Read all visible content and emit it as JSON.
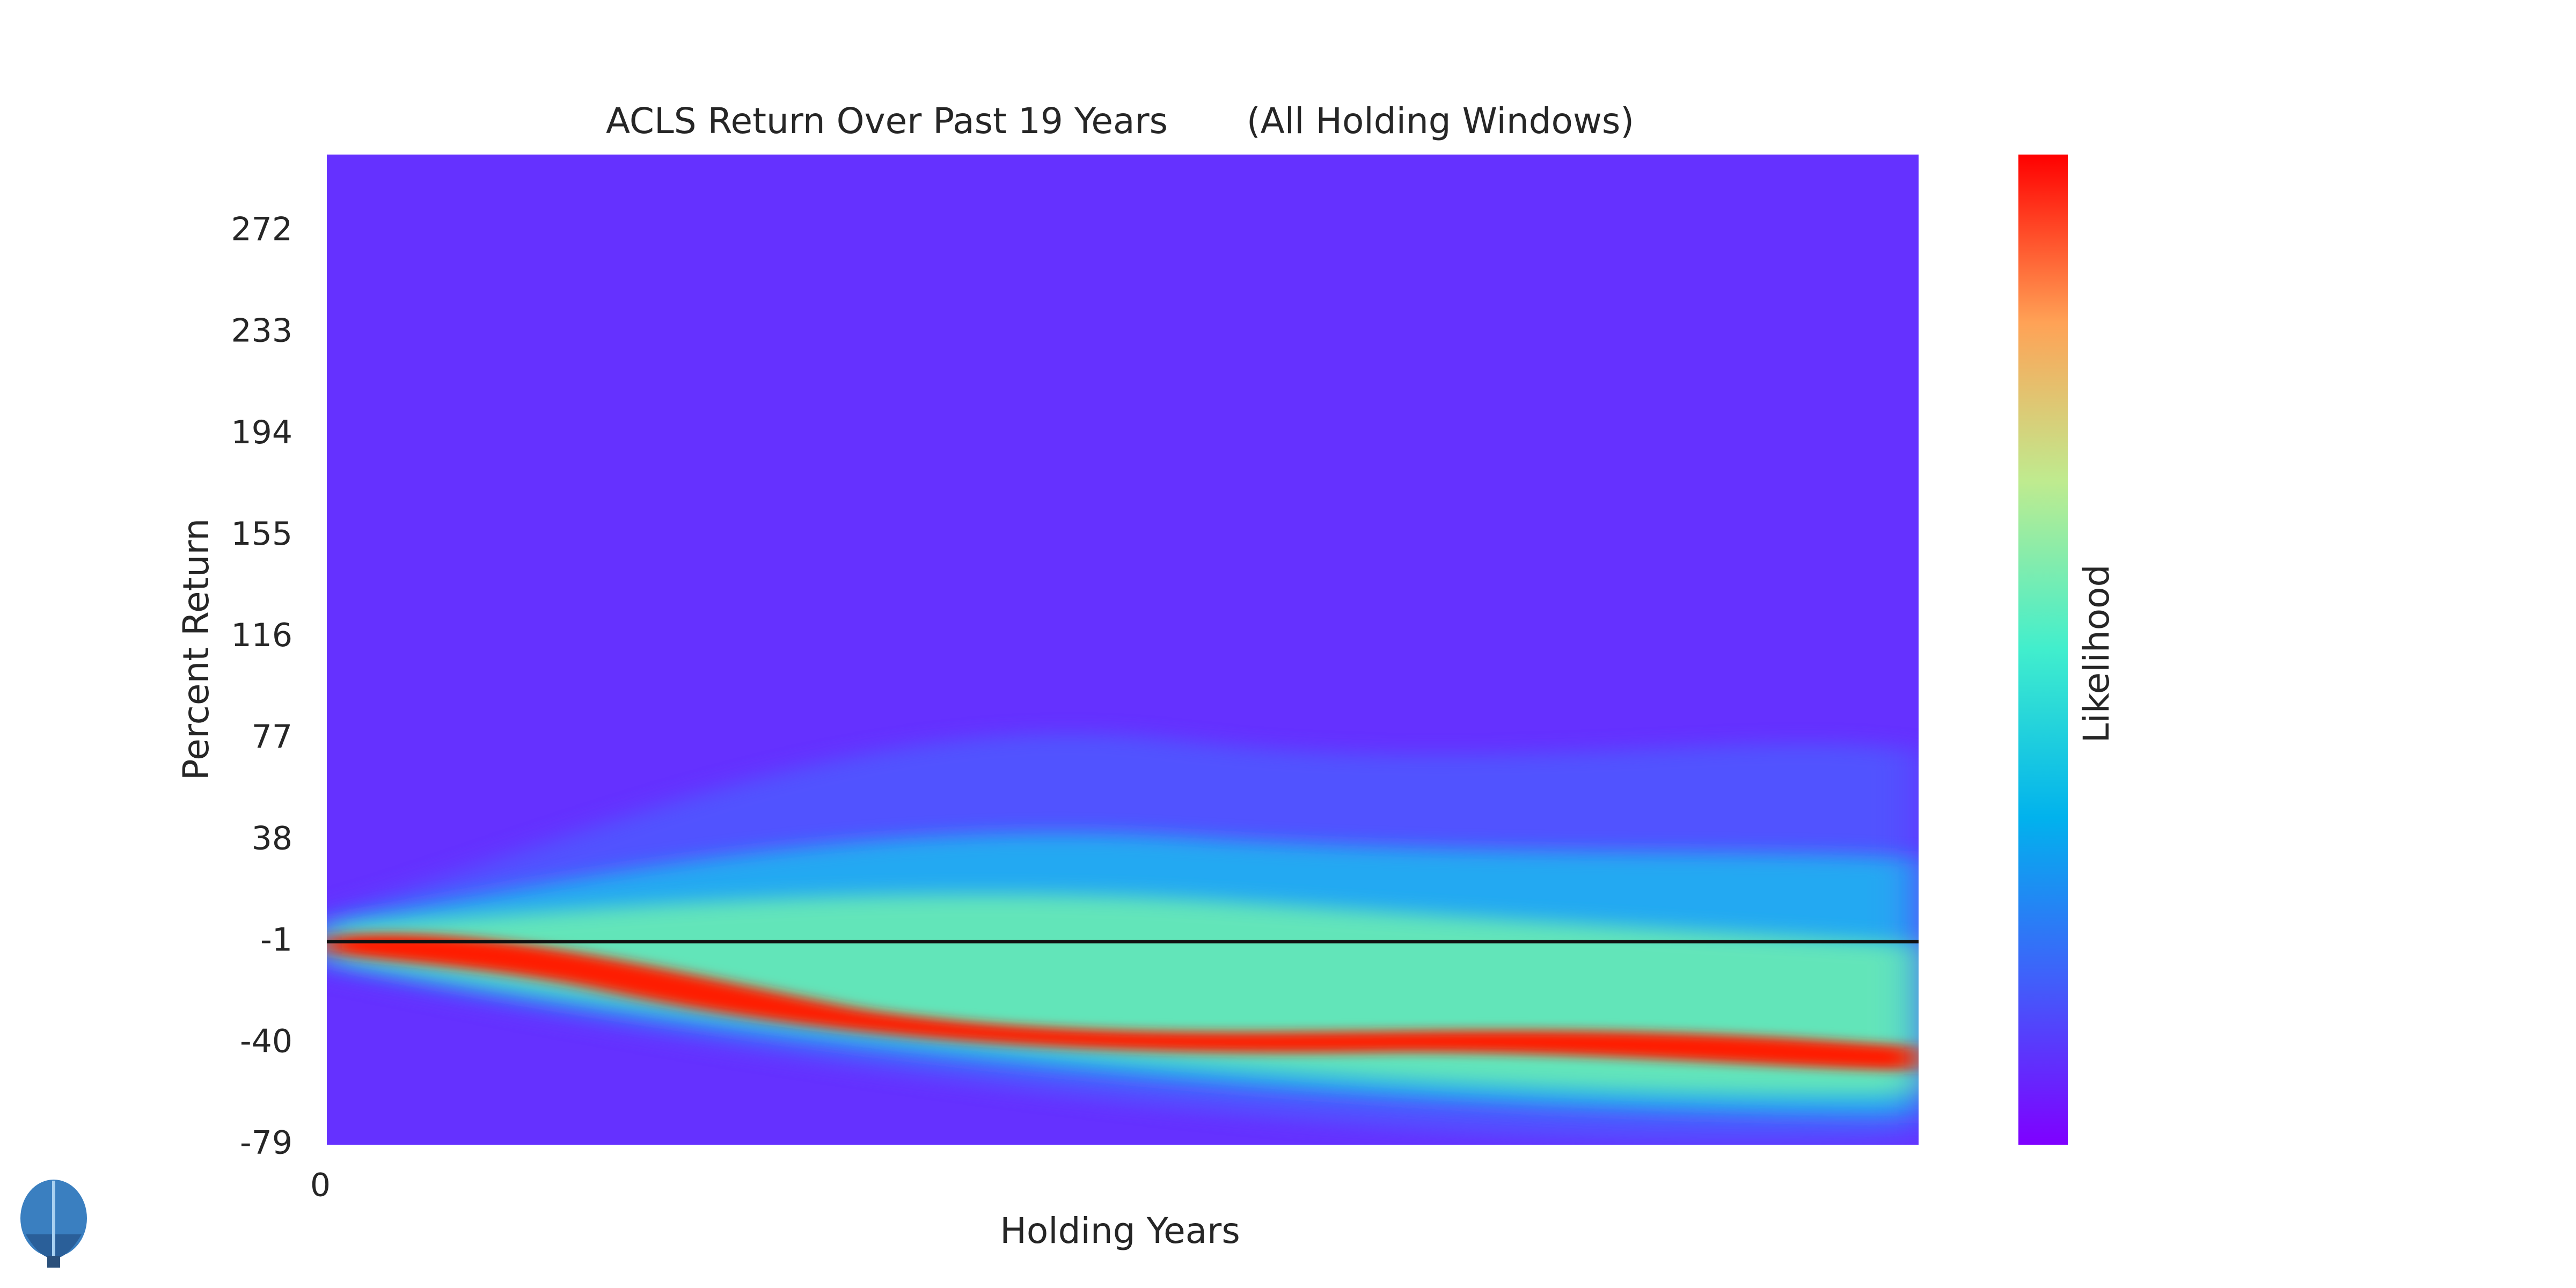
{
  "chart_data": {
    "type": "heatmap",
    "title": "ACLS Return Over Past 19 Years       (All Holding Windows)",
    "x_label": "Holding Years",
    "y_label": "Percent Return",
    "colorbar_label": "Likelihood",
    "xlim": [
      0,
      19
    ],
    "xticks": [
      0
    ],
    "ylim": [
      -79,
      301.5
    ],
    "yticks": [
      -79,
      -40,
      -1,
      38,
      77,
      116,
      155,
      194,
      233,
      272
    ],
    "hline": -1
  }
}
